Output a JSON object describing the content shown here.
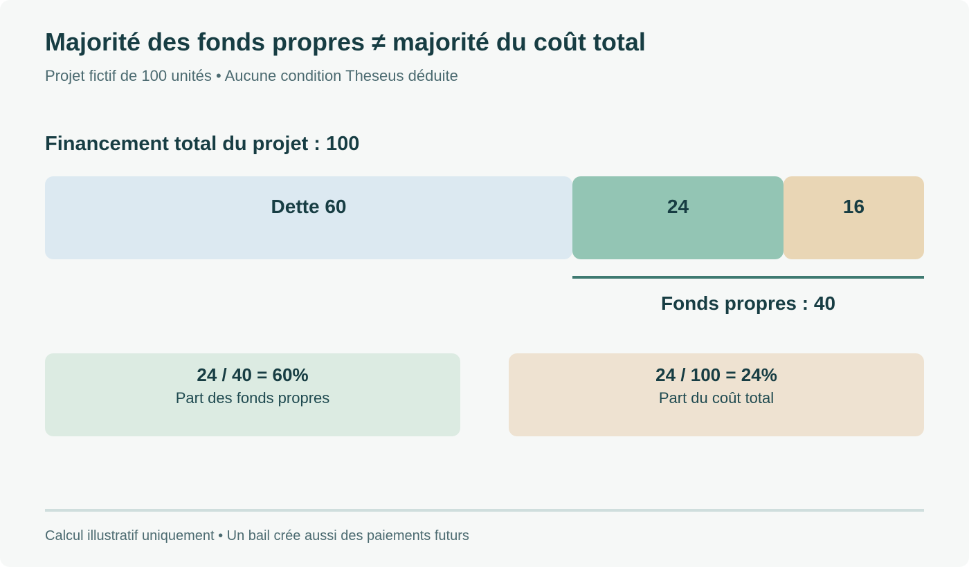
{
  "header": {
    "title": "Majorité des fonds propres ≠ majorité du coût total",
    "subtitle": "Projet fictif de 100 unités • Aucune condition Theseus déduite"
  },
  "financing": {
    "heading": "Financement total du projet : 100",
    "total": 100,
    "segments": [
      {
        "label": "Dette 60",
        "value": 60,
        "color": "#dce9f1"
      },
      {
        "label": "24",
        "value": 24,
        "color": "#93c5b4"
      },
      {
        "label": "16",
        "value": 16,
        "color": "#e9d6b5"
      }
    ],
    "equity_label": "Fonds propres : 40",
    "equity_color": "#3e7a71"
  },
  "cards": [
    {
      "formula": "24 / 40 = 60%",
      "caption": "Part des fonds propres",
      "color": "#dcebe2"
    },
    {
      "formula": "24 / 100 = 24%",
      "caption": "Part du coût total",
      "color": "#eee2d1"
    }
  ],
  "footer": {
    "note": "Calcul illustratif uniquement • Un bail crée aussi des paiements futurs"
  }
}
